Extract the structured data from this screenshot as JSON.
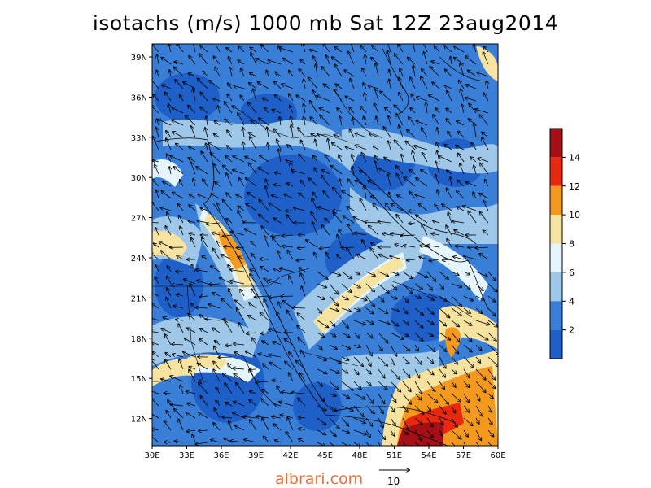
{
  "title": "isotachs (m/s) 1000 mb Sat 12Z 23aug2014",
  "footer": {
    "source": "albrari.com",
    "reference_vector_label": "10"
  },
  "map": {
    "lon_ticks": [
      "30E",
      "33E",
      "36E",
      "39E",
      "42E",
      "45E",
      "48E",
      "51E",
      "54E",
      "57E",
      "60E"
    ],
    "lat_ticks": [
      "39N",
      "36N",
      "33N",
      "30N",
      "27N",
      "24N",
      "21N",
      "18N",
      "15N",
      "12N"
    ]
  },
  "colorbar": {
    "labels": [
      "14",
      "12",
      "10",
      "8",
      "6",
      "4",
      "2"
    ],
    "colors": [
      "#a50f15",
      "#e8290f",
      "#f39a1e",
      "#f6e3a0",
      "#e6f5fb",
      "#9ec7e8",
      "#3a7fd7",
      "#1f5fc8"
    ]
  },
  "colors": {
    "background": "#ffffff",
    "land_outline": "#000000",
    "title": "#000000",
    "source_link": "#e8733a"
  }
}
